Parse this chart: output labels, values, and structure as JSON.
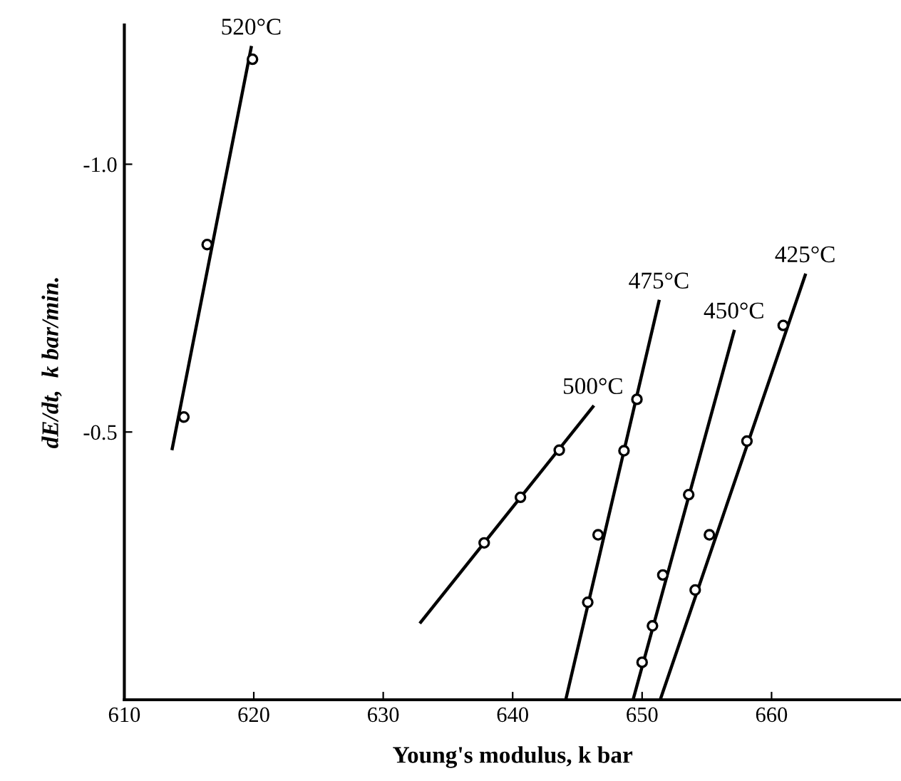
{
  "chart_data": {
    "type": "scatter",
    "xlabel": "Young's modulus, k bar",
    "ylabel": "dE/dt,  k bar/min.",
    "xlim": [
      610,
      670
    ],
    "ylim": [
      0,
      -1.26
    ],
    "xticks": [
      610,
      620,
      630,
      640,
      650,
      660
    ],
    "yticks": [
      {
        "value": -1.0,
        "label": "-1.0"
      },
      {
        "value": -0.5,
        "label": "-0.5"
      }
    ],
    "grid": false,
    "legend": false,
    "marker": "circle",
    "series": [
      {
        "color": "#000000",
        "x": [
          614.6,
          616.4,
          619.9
        ],
        "values": [
          -0.528,
          -0.85,
          -1.196
        ]
      },
      {
        "type": "line",
        "marker": "none",
        "name": "520°C",
        "color": "#000000",
        "x": [
          613.7,
          619.8
        ],
        "values": [
          -0.469,
          -1.218
        ]
      },
      {
        "color": "#000000",
        "x": [
          637.8,
          640.6,
          643.6
        ],
        "values": [
          -0.293,
          -0.378,
          -0.466
        ]
      },
      {
        "type": "line",
        "marker": "none",
        "name": "500°C",
        "color": "#000000",
        "x": [
          632.9,
          646.2
        ],
        "values": [
          -0.145,
          -0.547
        ]
      },
      {
        "color": "#000000",
        "x": [
          645.8,
          646.6,
          648.6,
          649.6
        ],
        "values": [
          -0.182,
          -0.308,
          -0.465,
          -0.561
        ]
      },
      {
        "type": "line",
        "marker": "none",
        "name": "475°C",
        "color": "#000000",
        "x": [
          644.1,
          651.3
        ],
        "values": [
          0,
          -0.744
        ]
      },
      {
        "color": "#000000",
        "x": [
          650.0,
          650.8,
          651.6,
          653.6
        ],
        "values": [
          -0.07,
          -0.138,
          -0.233,
          -0.383
        ]
      },
      {
        "type": "line",
        "marker": "none",
        "name": "450°C",
        "color": "#000000",
        "x": [
          649.3,
          657.1
        ],
        "values": [
          0,
          -0.688
        ]
      },
      {
        "color": "#000000",
        "x": [
          654.1,
          655.2,
          658.1,
          660.9
        ],
        "values": [
          -0.205,
          -0.308,
          -0.483,
          -0.699
        ]
      },
      {
        "type": "line",
        "marker": "none",
        "name": "425°C",
        "color": "#000000",
        "x": [
          651.4,
          662.6
        ],
        "values": [
          0,
          -0.793
        ]
      }
    ]
  }
}
